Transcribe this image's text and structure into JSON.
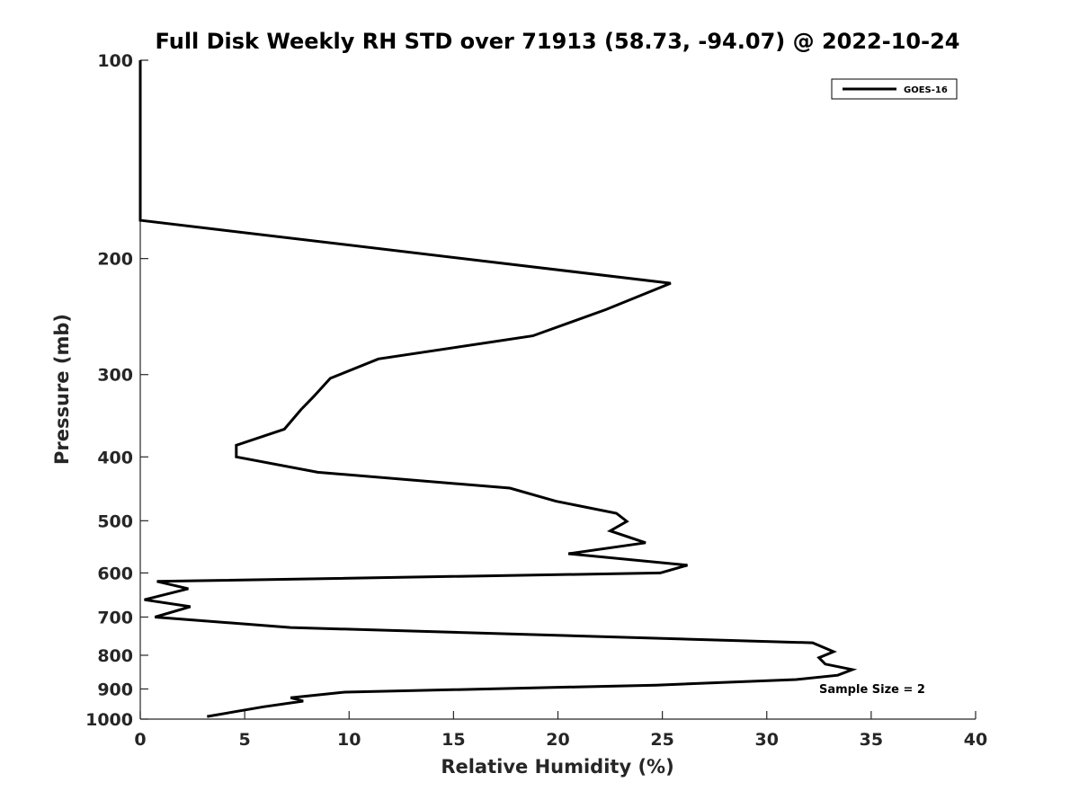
{
  "chart_data": {
    "type": "line",
    "title": "Full Disk Weekly RH STD over 71913 (58.73, -94.07) @ 2022-10-24",
    "xlabel": "Relative Humidity (%)",
    "ylabel": "Pressure (mb)",
    "xlim": [
      0,
      40
    ],
    "ylim": [
      100,
      1000
    ],
    "y_scale": "log",
    "y_reversed": true,
    "x_ticks": [
      0,
      5,
      10,
      15,
      20,
      25,
      30,
      35,
      40
    ],
    "y_ticks": [
      100,
      200,
      300,
      400,
      500,
      600,
      700,
      800,
      900,
      1000
    ],
    "grid": false,
    "legend_position": "top-right",
    "annotation": "Sample Size = 2",
    "series": [
      {
        "name": "GOES-16",
        "color": "#000000",
        "points": [
          [
            0,
            100
          ],
          [
            0,
            150
          ],
          [
            0,
            175
          ],
          [
            25.4,
            218
          ],
          [
            22.3,
            239
          ],
          [
            18.8,
            262
          ],
          [
            11.4,
            284
          ],
          [
            9.1,
            304
          ],
          [
            8.3,
            324
          ],
          [
            7.7,
            339
          ],
          [
            6.9,
            363
          ],
          [
            4.6,
            384
          ],
          [
            4.6,
            400
          ],
          [
            8.5,
            422
          ],
          [
            17.7,
            446
          ],
          [
            19.9,
            467
          ],
          [
            22.8,
            487
          ],
          [
            23.3,
            501
          ],
          [
            22.5,
            518
          ],
          [
            24.2,
            540
          ],
          [
            20.5,
            561
          ],
          [
            26.2,
            584
          ],
          [
            24.9,
            600
          ],
          [
            0.8,
            618
          ],
          [
            2.3,
            634
          ],
          [
            0.2,
            659
          ],
          [
            2.4,
            675
          ],
          [
            0.7,
            700
          ],
          [
            7.2,
            726
          ],
          [
            32.2,
            766
          ],
          [
            33.2,
            790
          ],
          [
            32.5,
            807
          ],
          [
            32.8,
            825
          ],
          [
            34.1,
            841
          ],
          [
            33.4,
            858
          ],
          [
            31.4,
            871
          ],
          [
            24.7,
            888
          ],
          [
            9.8,
            910
          ],
          [
            7.2,
            928
          ],
          [
            7.8,
            939
          ],
          [
            5.9,
            958
          ],
          [
            3.2,
            991
          ]
        ]
      }
    ]
  }
}
